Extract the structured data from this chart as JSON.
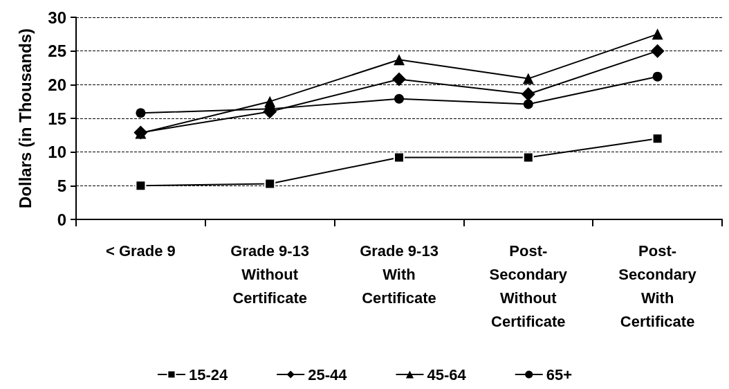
{
  "chart_data": {
    "type": "line",
    "ylabel": "Dollars (in Thousands)",
    "categories": [
      "< Grade 9",
      "Grade 9-13 Without Certificate",
      "Grade 9-13 With Certificate",
      "Post-Secondary Without Certificate",
      "Post-Secondary With Certificate"
    ],
    "series": [
      {
        "name": "15-24",
        "color": "#000000",
        "marker": "square",
        "values": [
          5.0,
          5.3,
          9.2,
          9.2,
          12.0
        ]
      },
      {
        "name": "25-44",
        "color": "#000000",
        "marker": "diamond",
        "values": [
          12.9,
          16.0,
          20.8,
          18.6,
          25.0
        ]
      },
      {
        "name": "45-64",
        "color": "#000000",
        "marker": "triangle",
        "values": [
          12.8,
          17.5,
          23.7,
          20.9,
          27.5
        ]
      },
      {
        "name": "65+",
        "color": "#000000",
        "marker": "circle",
        "values": [
          15.8,
          16.4,
          17.9,
          17.1,
          21.2
        ]
      }
    ],
    "ylim": [
      0,
      30
    ],
    "yticks": [
      0,
      5,
      10,
      15,
      20,
      25,
      30
    ],
    "grid": "y",
    "legend": "bottom",
    "line_style": "solid"
  }
}
